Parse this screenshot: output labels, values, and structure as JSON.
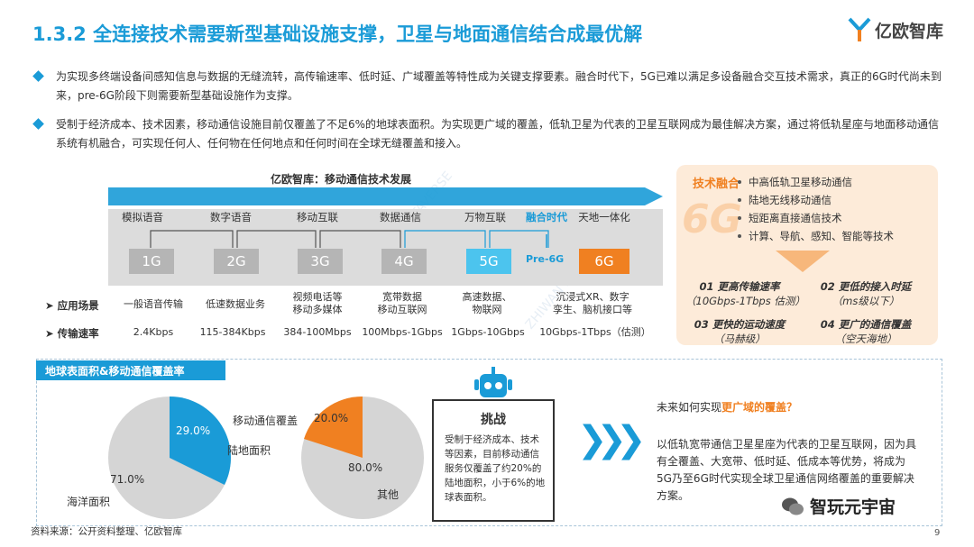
{
  "header": {
    "title": "1.3.2 全连接技术需要新型基础设施支撑，卫星与地面通信结合成最优解",
    "logo_text": "亿欧智库"
  },
  "bullets": [
    "为实现多终端设备间感知信息与数据的无缝流转，高传输速率、低时延、广域覆盖等特性成为关键支撑要素。融合时代下，5G已难以满足多设备融合交互技术需求，真正的6G时代尚未到来，pre-6G阶段下则需要新型基础设施作为支撑。",
    "受制于经济成本、技术因素，移动通信设施目前仅覆盖了不足6%的地球表面积。为实现更广域的覆盖，低轨卫星为代表的卫星互联网成为最佳解决方案，通过将低轨星座与地面移动通信系统有机融合，可实现任何人、任何物在任何地点和任何时间在全球无缝覆盖和接入。"
  ],
  "evolution": {
    "title": "亿欧智库：移动通信技术发展",
    "stage_labels": [
      "模拟语音",
      "数字语音",
      "移动互联",
      "数据通信",
      "万物互联",
      "融合时代",
      "天地一体化"
    ],
    "generations": [
      "1G",
      "2G",
      "3G",
      "4G",
      "5G",
      "Pre-6G",
      "6G"
    ],
    "row_headers": [
      "应用场景",
      "传输速率"
    ],
    "scenarios": [
      "一般语音传输",
      "低速数据业务",
      "视频电话等\n移动多媒体",
      "宽带数据\n移动互联网",
      "高速数据、\n物联网",
      "沉浸式XR、数字\n孪生、脑机接口等"
    ],
    "rates": [
      "2.4Kbps",
      "115-384Kbps",
      "384-100Mbps",
      "100Mbps-1Gbps",
      "1Gbps-10Gbps",
      "10Gbps-1Tbps（估测）"
    ]
  },
  "tech": {
    "head": "技术融合",
    "big": "6G",
    "items": [
      "中高低轨卫星移动通信",
      "陆地无线移动通信",
      "短距离直接通信技术",
      "计算、导航、感知、智能等技术"
    ],
    "features": [
      {
        "title": "01 更高传输速率",
        "sub": "（10Gbps-1Tbps 估测）"
      },
      {
        "title": "02 更低的接入时延",
        "sub": "（ms级以下）"
      },
      {
        "title": "03 更快的运动速度",
        "sub": "（马赫级）"
      },
      {
        "title": "04 更广的通信覆盖",
        "sub": "（空天海地）"
      }
    ]
  },
  "coverage": {
    "tab": "地球表面积&移动通信覆盖率",
    "pie1": {
      "land_pct": "29.0%",
      "ocean_pct": "71.0%",
      "land_label": "陆地面积",
      "ocean_label": "海洋面积"
    },
    "pie2": {
      "cov_pct": "20.0%",
      "other_pct": "80.0%",
      "cov_label": "移动通信覆盖",
      "other_label": "其他"
    },
    "chart_data": [
      {
        "type": "pie",
        "categories": [
          "陆地面积",
          "海洋面积"
        ],
        "values": [
          29.0,
          71.0
        ]
      },
      {
        "type": "pie",
        "categories": [
          "移动通信覆盖",
          "其他"
        ],
        "values": [
          20.0,
          80.0
        ]
      }
    ]
  },
  "challenge": {
    "head": "挑战",
    "body": "受制于经济成本、技术等因素，目前移动通信服务仅覆盖了约20%的陆地面积，小于6%的地球表面积。"
  },
  "answer": {
    "question_prefix": "未来如何实现",
    "question_highlight": "更广域的覆盖？",
    "body": "以低轨宽带通信卫星星座为代表的卫星互联网，因为具有全覆盖、大宽带、低时延、低成本等优势，将成为5G乃至6G时代实现全球卫星通信网络覆盖的重要解决方案。"
  },
  "footer": {
    "source": "资料来源：公开资料整理、亿欧智库",
    "page": "9",
    "watermark": "智玩元宇宙"
  },
  "colors": {
    "accent": "#1a9bd7",
    "orange": "#f08021",
    "gray": "#b5b5b5",
    "cyan": "#4cc4ee"
  }
}
